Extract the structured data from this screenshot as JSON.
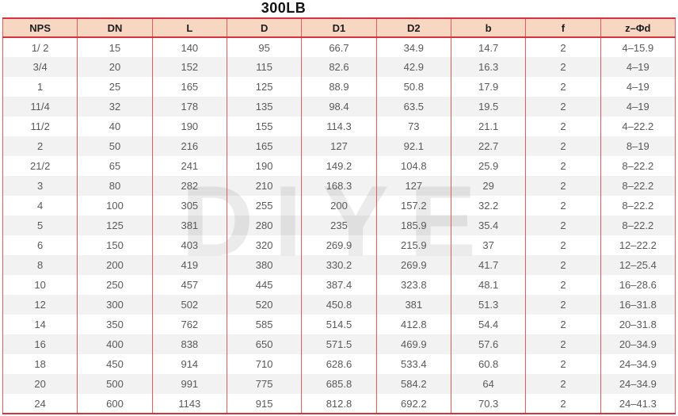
{
  "title": "300LB",
  "watermark": "DIYE",
  "colors": {
    "header_bg": "#f8d7c2",
    "strong_red": "#d5343c",
    "line_red": "#e4595e",
    "header_text": "#1d1d1f",
    "cell_text": "#58595b",
    "watermark_color": "#ebebeb",
    "row_alt": "#efefef"
  },
  "table": {
    "columns": [
      "NPS",
      "DN",
      "L",
      "D",
      "D1",
      "D2",
      "b",
      "f",
      "z–Φd"
    ],
    "rows": [
      [
        "1/ 2",
        "15",
        "140",
        "95",
        "66.7",
        "34.9",
        "14.7",
        "2",
        "4–15.9"
      ],
      [
        "3/4",
        "20",
        "152",
        "115",
        "82.6",
        "42.9",
        "16.3",
        "2",
        "4–19"
      ],
      [
        "1",
        "25",
        "165",
        "125",
        "88.9",
        "50.8",
        "17.9",
        "2",
        "4–19"
      ],
      [
        "11/4",
        "32",
        "178",
        "135",
        "98.4",
        "63.5",
        "19.5",
        "2",
        "4–19"
      ],
      [
        "11/2",
        "40",
        "190",
        "155",
        "114.3",
        "73",
        "21.1",
        "2",
        "4–22.2"
      ],
      [
        "2",
        "50",
        "216",
        "165",
        "127",
        "92.1",
        "22.7",
        "2",
        "8–19"
      ],
      [
        "21/2",
        "65",
        "241",
        "190",
        "149.2",
        "104.8",
        "25.9",
        "2",
        "8–22.2"
      ],
      [
        "3",
        "80",
        "282",
        "210",
        "168.3",
        "127",
        "29",
        "2",
        "8–22.2"
      ],
      [
        "4",
        "100",
        "305",
        "255",
        "200",
        "157.2",
        "32.2",
        "2",
        "8–22.2"
      ],
      [
        "5",
        "125",
        "381",
        "280",
        "235",
        "185.9",
        "35.4",
        "2",
        "8–22.2"
      ],
      [
        "6",
        "150",
        "403",
        "320",
        "269.9",
        "215.9",
        "37",
        "2",
        "12–22.2"
      ],
      [
        "8",
        "200",
        "419",
        "380",
        "330.2",
        "269.9",
        "41.7",
        "2",
        "12–25.4"
      ],
      [
        "10",
        "250",
        "457",
        "445",
        "387.4",
        "323.8",
        "48.1",
        "2",
        "16–28.6"
      ],
      [
        "12",
        "300",
        "502",
        "520",
        "450.8",
        "381",
        "51.3",
        "2",
        "16–31.8"
      ],
      [
        "14",
        "350",
        "762",
        "585",
        "514.5",
        "412.8",
        "54.4",
        "2",
        "20–31.8"
      ],
      [
        "16",
        "400",
        "838",
        "650",
        "571.5",
        "469.9",
        "57.6",
        "2",
        "20–34.9"
      ],
      [
        "18",
        "450",
        "914",
        "710",
        "628.6",
        "533.4",
        "60.8",
        "2",
        "24–34.9"
      ],
      [
        "20",
        "500",
        "991",
        "775",
        "685.8",
        "584.2",
        "64",
        "2",
        "24–34.9"
      ],
      [
        "24",
        "600",
        "1143",
        "915",
        "812.8",
        "692.2",
        "70.3",
        "2",
        "24–41.3"
      ]
    ]
  }
}
